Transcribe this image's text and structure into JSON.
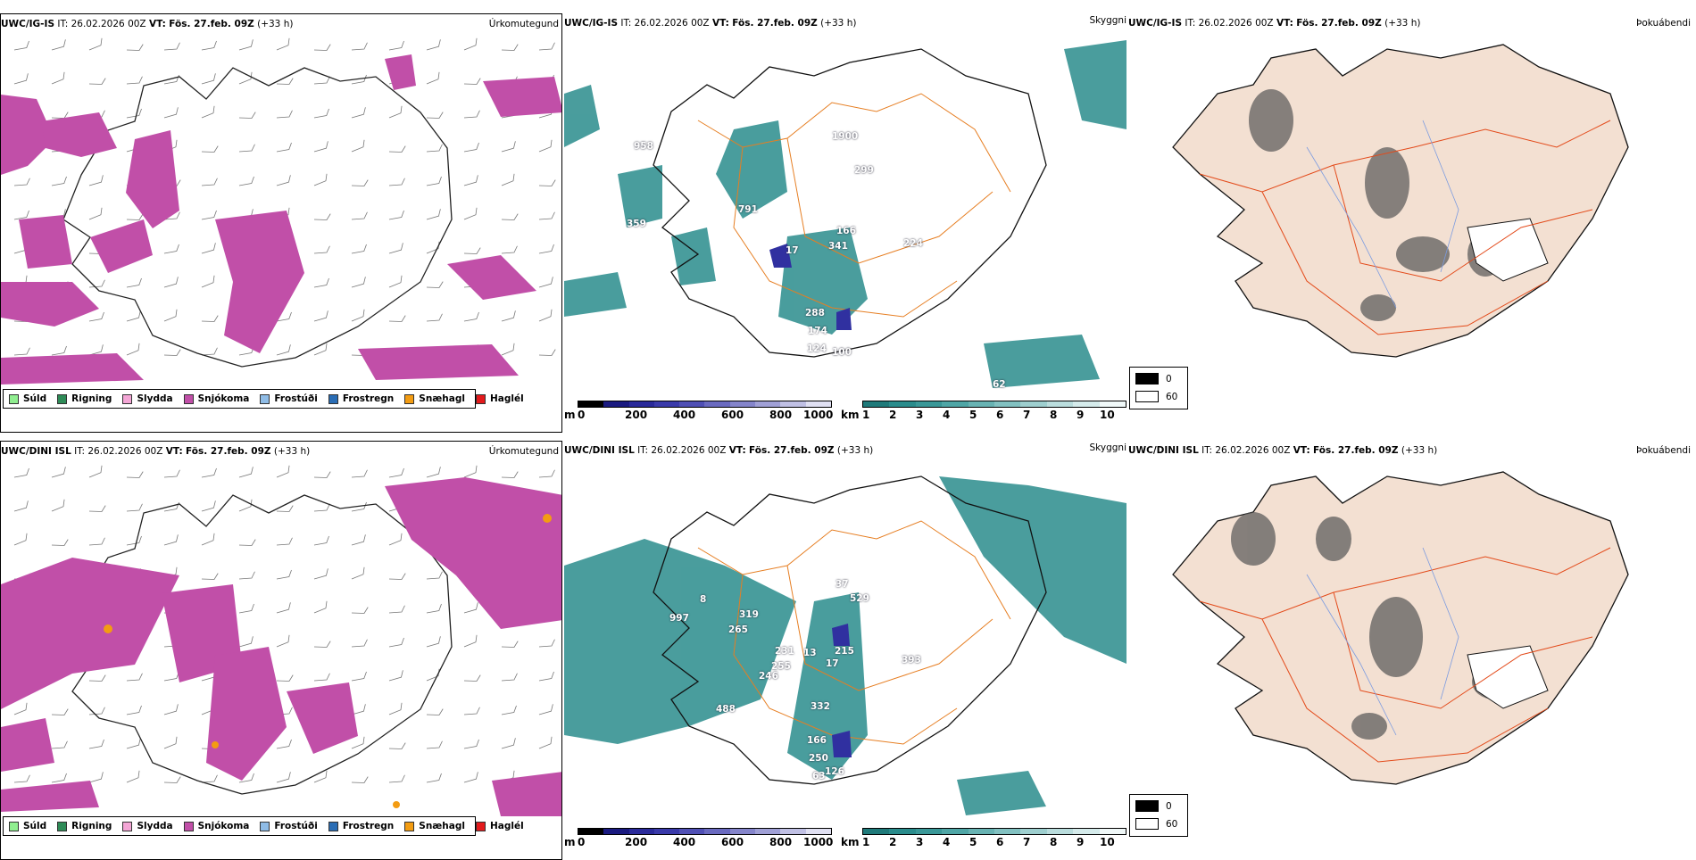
{
  "rows": [
    {
      "model": "UWC/IG-IS",
      "it_label": "IT:",
      "it_value": "26.02.2026 00Z",
      "vt_label": "VT:",
      "vt_value": "Fös. 27.feb. 09Z",
      "lead": "(+33 h)",
      "precip_type_title": "Úrkomutegund",
      "visibility_title": "Skyggni",
      "cloud_title": "Þokuábendi",
      "visibility_numbers": [
        "958",
        "791",
        "359",
        "1900",
        "299",
        "166",
        "17",
        "341",
        "224",
        "288",
        "174",
        "124",
        "100",
        "62"
      ]
    },
    {
      "model": "UWC/DINI ISL",
      "it_label": "IT:",
      "it_value": "26.02.2026 00Z",
      "vt_label": "VT:",
      "vt_value": "Fös. 27.feb. 09Z",
      "lead": "(+33 h)",
      "precip_type_title": "Úrkomutegund",
      "visibility_title": "Skyggni",
      "cloud_title": "Þokuábendi",
      "visibility_numbers": [
        "8",
        "997",
        "319",
        "265",
        "37",
        "529",
        "231",
        "13",
        "215",
        "17",
        "393",
        "255",
        "246",
        "488",
        "332",
        "166",
        "250",
        "126",
        "63"
      ]
    }
  ],
  "precip_legend": [
    {
      "label": "Súld",
      "color": "#90ee90"
    },
    {
      "label": "Rigning",
      "color": "#2e8b57"
    },
    {
      "label": "Slydda",
      "color": "#f4a6d6"
    },
    {
      "label": "Snjókoma",
      "color": "#c14fa8"
    },
    {
      "label": "Frostúði",
      "color": "#8fbce6"
    },
    {
      "label": "Frostregn",
      "color": "#2a6db5"
    },
    {
      "label": "Snæhagl",
      "color": "#f39c12"
    },
    {
      "label": "Haglél",
      "color": "#e31a1c"
    }
  ],
  "colorbar_m": {
    "unit": "m",
    "ticks": [
      "0",
      "200",
      "400",
      "600",
      "800",
      "1000"
    ]
  },
  "colorbar_km": {
    "unit": "km",
    "ticks": [
      "1",
      "2",
      "3",
      "4",
      "5",
      "6",
      "7",
      "8",
      "9",
      "10"
    ]
  },
  "fog_legend": {
    "values": [
      "0",
      "60"
    ]
  },
  "colors": {
    "snow": "#c14fa8",
    "vis_teal": "#2a8c8c",
    "vis_blue": "#3030a0",
    "roads": "#e67e22",
    "land": "#f3e0d2",
    "coast": "#111111"
  }
}
